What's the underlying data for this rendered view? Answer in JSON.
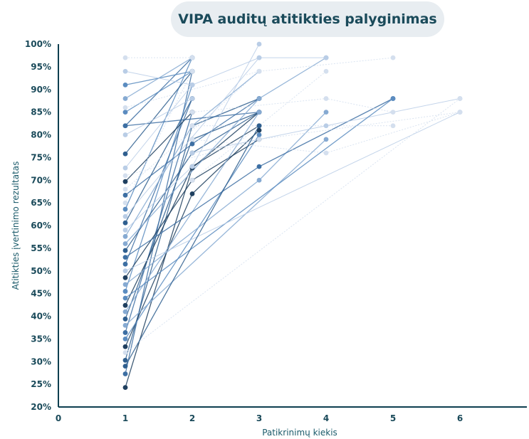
{
  "colors": {
    "axis": "#0e3f4f",
    "text": "#1a4a5a",
    "title_bg": "#e8edf1",
    "series_palette": [
      "#1f3f5f",
      "#2f5f8f",
      "#3d6fa3",
      "#5b8cc0",
      "#86aad2",
      "#b9cde6",
      "#d4dfee"
    ]
  },
  "chart_data": {
    "type": "line",
    "title": "VIPA auditų atitikties palyginimas",
    "xlabel": "Patikrinimų kiekis",
    "ylabel": "Atitikties įvertinimo rezultatas",
    "xlim": [
      0,
      7
    ],
    "ylim": [
      20,
      100
    ],
    "x_ticks": [
      "0",
      "1",
      "2",
      "3",
      "4",
      "5",
      "6"
    ],
    "y_ticks": [
      "20%",
      "25%",
      "30%",
      "35%",
      "40%",
      "45%",
      "50%",
      "55%",
      "60%",
      "65%",
      "70%",
      "75%",
      "80%",
      "85%",
      "90%",
      "95%",
      "100%"
    ],
    "y_tick_values": [
      20,
      25,
      30,
      35,
      40,
      45,
      50,
      55,
      60,
      65,
      70,
      75,
      80,
      85,
      90,
      95,
      100
    ],
    "grid": false,
    "legend": "none",
    "series": [
      {
        "values": [
          [
            1,
            24.3
          ],
          [
            2,
            72.7
          ],
          [
            3,
            85.0
          ]
        ],
        "shade": 0
      },
      {
        "values": [
          [
            1,
            27.3
          ],
          [
            2,
            94.0
          ]
        ],
        "shade": 2
      },
      {
        "values": [
          [
            1,
            30.3
          ],
          [
            2,
            82.0
          ],
          [
            3,
            88.0
          ]
        ],
        "shade": 1
      },
      {
        "values": [
          [
            1,
            33.3
          ],
          [
            2,
            67.0
          ],
          [
            3,
            81.0
          ]
        ],
        "shade": 0
      },
      {
        "values": [
          [
            1,
            36.4
          ],
          [
            2,
            85.0
          ]
        ],
        "shade": 2
      },
      {
        "values": [
          [
            1,
            39.4
          ],
          [
            2,
            79.0
          ],
          [
            3,
            85.0
          ]
        ],
        "shade": 1
      },
      {
        "values": [
          [
            1,
            42.4
          ],
          [
            2,
            73.0
          ],
          [
            3,
            82.0
          ]
        ],
        "shade": 0
      },
      {
        "values": [
          [
            1,
            45.5
          ],
          [
            2,
            91.0
          ]
        ],
        "shade": 3
      },
      {
        "values": [
          [
            1,
            48.5
          ],
          [
            2,
            70.0
          ],
          [
            3,
            79.0
          ]
        ],
        "shade": 0
      },
      {
        "values": [
          [
            1,
            51.5
          ],
          [
            2,
            88.0
          ]
        ],
        "shade": 2
      },
      {
        "values": [
          [
            1,
            54.5
          ],
          [
            2,
            76.0
          ],
          [
            3,
            85.0
          ]
        ],
        "shade": 1
      },
      {
        "values": [
          [
            1,
            57.6
          ],
          [
            2,
            82.0
          ],
          [
            3,
            94.0
          ]
        ],
        "shade": 4
      },
      {
        "values": [
          [
            1,
            60.6
          ],
          [
            2,
            88.0
          ]
        ],
        "shade": 1
      },
      {
        "values": [
          [
            1,
            63.6
          ],
          [
            2,
            97.0
          ]
        ],
        "shade": 3
      },
      {
        "values": [
          [
            1,
            66.7
          ],
          [
            2,
            78.0
          ],
          [
            3,
            88.0
          ]
        ],
        "shade": 2
      },
      {
        "values": [
          [
            1,
            69.7
          ],
          [
            2,
            85.0
          ]
        ],
        "shade": 0
      },
      {
        "values": [
          [
            1,
            72.7
          ],
          [
            2,
            91.0
          ],
          [
            3,
            97.0
          ]
        ],
        "shade": 5
      },
      {
        "values": [
          [
            1,
            75.8
          ],
          [
            2,
            94.0
          ]
        ],
        "shade": 1
      },
      {
        "values": [
          [
            1,
            82.0
          ],
          [
            2,
            97.0
          ]
        ],
        "shade": 2
      },
      {
        "values": [
          [
            1,
            82.0
          ],
          [
            3,
            85.0
          ]
        ],
        "shade": 2
      },
      {
        "values": [
          [
            1,
            85.0
          ],
          [
            2,
            94.0
          ]
        ],
        "shade": 3
      },
      {
        "values": [
          [
            1,
            88.0
          ],
          [
            2,
            97.0
          ]
        ],
        "shade": 4
      },
      {
        "values": [
          [
            1,
            91.0
          ],
          [
            2,
            94.0
          ]
        ],
        "shade": 3
      },
      {
        "values": [
          [
            1,
            94.0
          ],
          [
            2,
            91.0
          ]
        ],
        "shade": 5
      },
      {
        "values": [
          [
            1,
            97.0
          ],
          [
            2,
            97.0
          ]
        ],
        "shade": 6
      },
      {
        "values": [
          [
            1,
            41.0
          ],
          [
            3,
            85.0
          ]
        ],
        "shade": 4
      },
      {
        "values": [
          [
            1,
            35.0
          ],
          [
            3,
            80.0
          ]
        ],
        "shade": 3
      },
      {
        "values": [
          [
            1,
            56.0
          ],
          [
            3,
            88.0
          ],
          [
            4,
            97.0
          ]
        ],
        "shade": 4
      },
      {
        "values": [
          [
            1,
            62.0
          ],
          [
            3,
            97.0
          ],
          [
            4,
            97.0
          ]
        ],
        "shade": 5
      },
      {
        "values": [
          [
            1,
            68.0
          ],
          [
            3,
            94.0
          ],
          [
            5,
            97.0
          ]
        ],
        "shade": 6
      },
      {
        "values": [
          [
            1,
            47.0
          ],
          [
            3,
            70.0
          ],
          [
            4,
            85.0
          ]
        ],
        "shade": 4
      },
      {
        "values": [
          [
            1,
            53.0
          ],
          [
            3,
            73.0
          ],
          [
            5,
            88.0
          ]
        ],
        "shade": 2
      },
      {
        "values": [
          [
            1,
            59.0
          ],
          [
            2,
            73.0
          ],
          [
            3,
            100.0
          ]
        ],
        "shade": 5
      },
      {
        "values": [
          [
            2,
            70.0
          ],
          [
            4,
            94.0
          ]
        ],
        "shade": 6
      },
      {
        "values": [
          [
            2,
            85.0
          ],
          [
            4,
            88.0
          ],
          [
            5,
            85.0
          ]
        ],
        "shade": 6
      },
      {
        "values": [
          [
            2,
            79.0
          ],
          [
            4,
            76.0
          ],
          [
            6,
            85.0
          ]
        ],
        "shade": 6
      },
      {
        "values": [
          [
            2,
            76.0
          ],
          [
            4,
            82.0
          ],
          [
            6,
            88.0
          ]
        ],
        "shade": 5
      },
      {
        "values": [
          [
            2,
            82.0
          ],
          [
            5,
            82.0
          ]
        ],
        "shade": 6
      },
      {
        "values": [
          [
            1,
            38.0
          ],
          [
            4,
            79.0
          ]
        ],
        "shade": 4
      },
      {
        "values": [
          [
            1,
            44.0
          ],
          [
            5,
            88.0
          ]
        ],
        "shade": 3
      },
      {
        "values": [
          [
            1,
            50.0
          ],
          [
            6,
            85.0
          ]
        ],
        "shade": 5
      },
      {
        "values": [
          [
            1,
            32.0
          ],
          [
            6,
            88.0
          ]
        ],
        "shade": 6
      },
      {
        "values": [
          [
            1,
            71.0
          ],
          [
            3,
            79.0
          ],
          [
            6,
            85.0
          ]
        ],
        "shade": 6
      },
      {
        "values": [
          [
            1,
            29.0
          ],
          [
            3,
            82.0
          ]
        ],
        "shade": 1
      },
      {
        "values": [
          [
            1,
            65.0
          ],
          [
            2,
            94.0
          ]
        ],
        "shade": 6
      },
      {
        "values": [
          [
            1,
            80.0
          ],
          [
            2,
            88.0
          ]
        ],
        "shade": 5
      },
      {
        "values": [
          [
            1,
            86.0
          ],
          [
            3,
            94.0
          ]
        ],
        "shade": 6
      }
    ]
  }
}
